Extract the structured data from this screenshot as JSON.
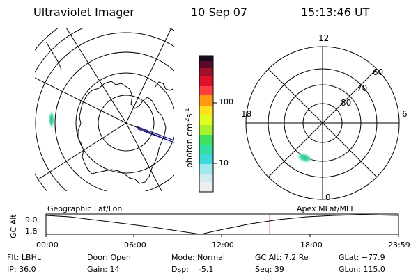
{
  "header": {
    "instrument": "Ultraviolet Imager",
    "date": "10 Sep 07",
    "time": "15:13:46 UT"
  },
  "colorbar": {
    "unit_label": "photon cm",
    "exp1": "-2",
    "mid": "s",
    "exp2": "-1",
    "ticks": [
      "100",
      "10"
    ]
  },
  "apex_plot": {
    "labels": {
      "top": "12",
      "bottom": "0",
      "left": "18",
      "right": "6"
    },
    "lat_labels": [
      "60",
      "70",
      "80"
    ]
  },
  "timeline": {
    "left_title": "Geographic Lat/Lon",
    "right_title": "Apex MLat/MLT",
    "ylabel": "GC Alt",
    "y_max": "9.0",
    "y_min": "1.8",
    "x_ticks": [
      "00:00",
      "06:00",
      "12:00",
      "18:00",
      "23:59"
    ],
    "current_time_hours": 15.23
  },
  "info": {
    "flt": "Flt: LBHL",
    "ip": "IP: 36.0",
    "door": "Door: Open",
    "gain": "Gain: 14",
    "mode": "Mode: Normal",
    "dsp": "Dsp:    -5.1",
    "gcalt": "GC Alt: 7.2 Re",
    "seq": "Seq: 39",
    "glat": "GLat: −77.9",
    "glon": "GLon: 115.0"
  }
}
